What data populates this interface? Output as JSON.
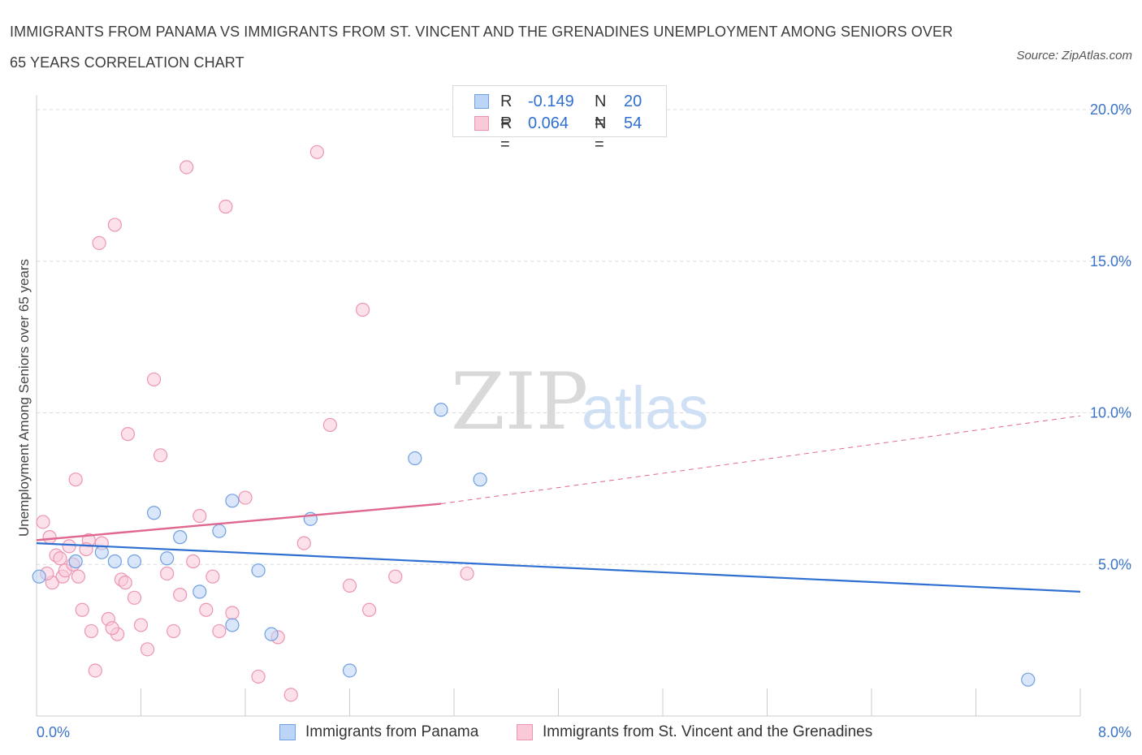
{
  "title": "IMMIGRANTS FROM PANAMA VS IMMIGRANTS FROM ST. VINCENT AND THE GRENADINES UNEMPLOYMENT AMONG SENIORS OVER 65 YEARS CORRELATION CHART",
  "source": "Source: ZipAtlas.com",
  "watermark": {
    "zip": "ZIP",
    "atlas": "atlas"
  },
  "colors": {
    "panama_fill": "#bcd4f5",
    "panama_stroke": "#6f9fe0",
    "panama_line": "#2f6fd1",
    "svg_fill": "#f9c9d8",
    "svg_stroke": "#ec94b1",
    "svg_line": "#e0678f",
    "grid": "#dcdcdc",
    "axis_text": "#3a73c8"
  },
  "stats": {
    "panama": {
      "r_label": "R =",
      "r_value": "-0.149",
      "n_label": "N =",
      "n_value": "20"
    },
    "svg": {
      "r_label": "R =",
      "r_value": "0.064",
      "n_label": "N =",
      "n_value": "54"
    }
  },
  "chart_data": {
    "type": "scatter",
    "title": "IMMIGRANTS FROM PANAMA VS IMMIGRANTS FROM ST. VINCENT AND THE GRENADINES UNEMPLOYMENT AMONG SENIORS OVER 65 YEARS CORRELATION CHART",
    "xlabel": "",
    "ylabel": "Unemployment Among Seniors over 65 years",
    "xlim": [
      0,
      8
    ],
    "ylim": [
      0,
      20
    ],
    "x_tick_labels": [
      "0.0%",
      "8.0%"
    ],
    "y_ticks": [
      5,
      10,
      15,
      20
    ],
    "y_tick_labels": [
      "5.0%",
      "10.0%",
      "15.0%",
      "20.0%"
    ],
    "grid": true,
    "legend_position": "bottom",
    "series": [
      {
        "name": "Immigrants from Panama",
        "points": [
          [
            0.02,
            4.6
          ],
          [
            0.3,
            5.1
          ],
          [
            0.5,
            5.4
          ],
          [
            0.6,
            5.1
          ],
          [
            0.75,
            5.1
          ],
          [
            0.9,
            6.7
          ],
          [
            1.0,
            5.2
          ],
          [
            1.1,
            5.9
          ],
          [
            1.25,
            4.1
          ],
          [
            1.4,
            6.1
          ],
          [
            1.5,
            7.1
          ],
          [
            1.5,
            3.0
          ],
          [
            1.7,
            4.8
          ],
          [
            1.8,
            2.7
          ],
          [
            2.1,
            6.5
          ],
          [
            2.4,
            1.5
          ],
          [
            2.9,
            8.5
          ],
          [
            3.1,
            10.1
          ],
          [
            3.4,
            7.8
          ],
          [
            7.6,
            1.2
          ]
        ],
        "trend": [
          [
            0.0,
            5.7
          ],
          [
            8.0,
            4.1
          ]
        ]
      },
      {
        "name": "Immigrants from St. Vincent and the Grenadines",
        "points": [
          [
            0.05,
            6.4
          ],
          [
            0.1,
            5.9
          ],
          [
            0.12,
            4.4
          ],
          [
            0.15,
            5.3
          ],
          [
            0.2,
            4.6
          ],
          [
            0.22,
            4.8
          ],
          [
            0.25,
            5.6
          ],
          [
            0.3,
            7.8
          ],
          [
            0.32,
            4.6
          ],
          [
            0.35,
            3.5
          ],
          [
            0.4,
            5.8
          ],
          [
            0.42,
            2.8
          ],
          [
            0.45,
            1.5
          ],
          [
            0.48,
            15.6
          ],
          [
            0.5,
            5.7
          ],
          [
            0.55,
            3.2
          ],
          [
            0.6,
            16.2
          ],
          [
            0.62,
            2.7
          ],
          [
            0.65,
            4.5
          ],
          [
            0.7,
            9.3
          ],
          [
            0.75,
            3.9
          ],
          [
            0.8,
            3.0
          ],
          [
            0.85,
            2.2
          ],
          [
            0.9,
            11.1
          ],
          [
            0.95,
            8.6
          ],
          [
            1.0,
            4.7
          ],
          [
            1.05,
            2.8
          ],
          [
            1.1,
            4.0
          ],
          [
            1.15,
            18.1
          ],
          [
            1.2,
            5.1
          ],
          [
            1.25,
            6.6
          ],
          [
            1.3,
            3.5
          ],
          [
            1.35,
            4.6
          ],
          [
            1.4,
            2.8
          ],
          [
            1.45,
            16.8
          ],
          [
            1.5,
            3.4
          ],
          [
            1.6,
            7.2
          ],
          [
            1.7,
            1.3
          ],
          [
            1.85,
            2.6
          ],
          [
            1.95,
            0.7
          ],
          [
            2.05,
            5.7
          ],
          [
            2.15,
            18.6
          ],
          [
            2.25,
            9.6
          ],
          [
            2.4,
            4.3
          ],
          [
            2.5,
            13.4
          ],
          [
            2.55,
            3.5
          ],
          [
            2.75,
            4.6
          ],
          [
            3.3,
            4.7
          ],
          [
            0.08,
            4.7
          ],
          [
            0.18,
            5.2
          ],
          [
            0.28,
            5.0
          ],
          [
            0.38,
            5.5
          ],
          [
            0.58,
            2.9
          ],
          [
            0.68,
            4.4
          ]
        ],
        "trend": [
          [
            0.0,
            5.8
          ],
          [
            3.1,
            7.0
          ]
        ],
        "trend_extension": [
          [
            3.1,
            7.0
          ],
          [
            8.0,
            9.9
          ]
        ]
      }
    ]
  },
  "legend": [
    {
      "label": "Immigrants from Panama"
    },
    {
      "label": "Immigrants from St. Vincent and the Grenadines"
    }
  ]
}
